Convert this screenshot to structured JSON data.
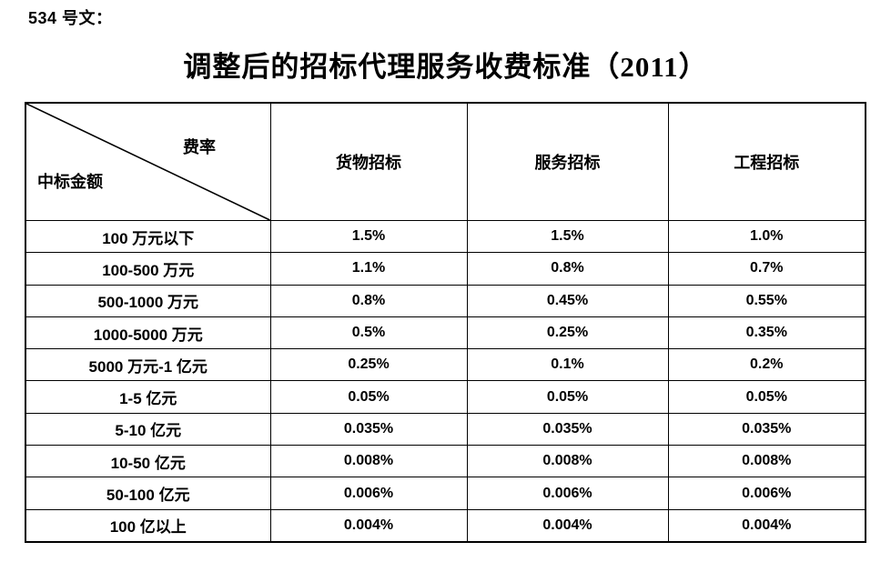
{
  "doc": {
    "ref_label": "534 号文：",
    "title": "调整后的招标代理服务收费标准（2011）"
  },
  "colors": {
    "text": "#000000",
    "background": "#ffffff",
    "border": "#000000"
  },
  "table": {
    "corner": {
      "top_right": "费率",
      "bottom_left": "中标金额"
    },
    "columns": [
      "货物招标",
      "服务招标",
      "工程招标"
    ],
    "rows": [
      {
        "label": "100 万元以下",
        "values": [
          "1.5%",
          "1.5%",
          "1.0%"
        ]
      },
      {
        "label": "100-500 万元",
        "values": [
          "1.1%",
          "0.8%",
          "0.7%"
        ]
      },
      {
        "label": "500-1000 万元",
        "values": [
          "0.8%",
          "0.45%",
          "0.55%"
        ]
      },
      {
        "label": "1000-5000 万元",
        "values": [
          "0.5%",
          "0.25%",
          "0.35%"
        ]
      },
      {
        "label": "5000 万元-1 亿元",
        "values": [
          "0.25%",
          "0.1%",
          "0.2%"
        ]
      },
      {
        "label": "1-5 亿元",
        "values": [
          "0.05%",
          "0.05%",
          "0.05%"
        ]
      },
      {
        "label": "5-10 亿元",
        "values": [
          "0.035%",
          "0.035%",
          "0.035%"
        ]
      },
      {
        "label": "10-50 亿元",
        "values": [
          "0.008%",
          "0.008%",
          "0.008%"
        ]
      },
      {
        "label": "50-100 亿元",
        "values": [
          "0.006%",
          "0.006%",
          "0.006%"
        ]
      },
      {
        "label": "100 亿以上",
        "values": [
          "0.004%",
          "0.004%",
          "0.004%"
        ]
      }
    ]
  }
}
